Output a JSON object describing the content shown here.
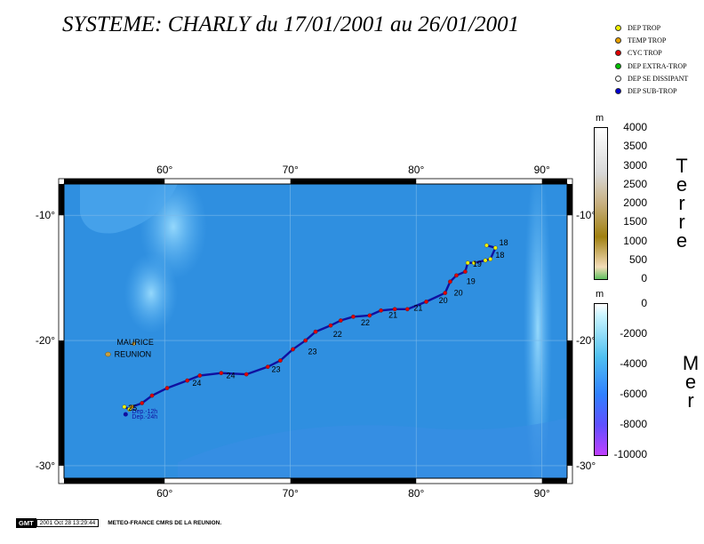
{
  "title": "SYSTEME: CHARLY du 17/01/2001 au 26/01/2001",
  "legend": [
    {
      "label": "DEP TROP",
      "color": "#f0f000"
    },
    {
      "label": "TEMP TROP",
      "color": "#e8a000"
    },
    {
      "label": "CYC TROP",
      "color": "#e00000"
    },
    {
      "label": "DEP EXTRA-TROP",
      "color": "#00c000"
    },
    {
      "label": "DEP SE DISSIPANT",
      "color": "#ffffff"
    },
    {
      "label": "DEP SUB-TROP",
      "color": "#0000d0"
    }
  ],
  "map": {
    "lon_ticks": [
      "60°",
      "70°",
      "80°",
      "90°"
    ],
    "lat_ticks": [
      "-10°",
      "-20°",
      "-30°"
    ],
    "lon_range": [
      52,
      92
    ],
    "lat_range": [
      -7.5,
      -31
    ],
    "places": [
      "MAURICE",
      "REUNION"
    ],
    "track_color": "#1010a0",
    "ocean_color": "#2f8fe0"
  },
  "track": {
    "day_labels": [
      "25",
      "24",
      "24",
      "23",
      "23",
      "22",
      "22",
      "21",
      "21",
      "20",
      "20",
      "19",
      "19",
      "18",
      "18"
    ],
    "day_label_coords": [
      {
        "lon": 57.1,
        "lat": -25.6
      },
      {
        "lon": 62.2,
        "lat": -23.6
      },
      {
        "lon": 64.9,
        "lat": -23.0
      },
      {
        "lon": 68.5,
        "lat": -22.5
      },
      {
        "lon": 71.4,
        "lat": -21.1
      },
      {
        "lon": 73.4,
        "lat": -19.7
      },
      {
        "lon": 75.6,
        "lat": -18.8
      },
      {
        "lon": 77.8,
        "lat": -18.2
      },
      {
        "lon": 79.8,
        "lat": -17.6
      },
      {
        "lon": 81.8,
        "lat": -17.0
      },
      {
        "lon": 83.0,
        "lat": -16.4
      },
      {
        "lon": 84.0,
        "lat": -15.5
      },
      {
        "lon": 84.5,
        "lat": -14.1
      },
      {
        "lon": 86.3,
        "lat": -13.4
      },
      {
        "lon": 86.6,
        "lat": -12.4
      }
    ],
    "start_labels": [
      "Dep.-12h",
      "Dep.-24h"
    ],
    "points": [
      {
        "lon": 56.8,
        "lat": -25.3,
        "type": "DEP TROP"
      },
      {
        "lon": 57.2,
        "lat": -25.5,
        "type": "DEP TROP"
      },
      {
        "lon": 57.4,
        "lat": -25.3,
        "type": "TEMP TROP"
      },
      {
        "lon": 58.2,
        "lat": -25.0,
        "type": "CYC TROP"
      },
      {
        "lon": 59.0,
        "lat": -24.4,
        "type": "CYC TROP"
      },
      {
        "lon": 60.2,
        "lat": -23.8,
        "type": "CYC TROP"
      },
      {
        "lon": 61.8,
        "lat": -23.2,
        "type": "CYC TROP"
      },
      {
        "lon": 62.8,
        "lat": -22.8,
        "type": "CYC TROP"
      },
      {
        "lon": 64.5,
        "lat": -22.6,
        "type": "CYC TROP"
      },
      {
        "lon": 66.5,
        "lat": -22.7,
        "type": "CYC TROP"
      },
      {
        "lon": 68.2,
        "lat": -22.1,
        "type": "CYC TROP"
      },
      {
        "lon": 69.2,
        "lat": -21.6,
        "type": "CYC TROP"
      },
      {
        "lon": 70.2,
        "lat": -20.7,
        "type": "CYC TROP"
      },
      {
        "lon": 71.2,
        "lat": -20.0,
        "type": "CYC TROP"
      },
      {
        "lon": 72.0,
        "lat": -19.3,
        "type": "CYC TROP"
      },
      {
        "lon": 73.2,
        "lat": -18.8,
        "type": "CYC TROP"
      },
      {
        "lon": 74.0,
        "lat": -18.4,
        "type": "CYC TROP"
      },
      {
        "lon": 75.0,
        "lat": -18.1,
        "type": "CYC TROP"
      },
      {
        "lon": 76.3,
        "lat": -18.0,
        "type": "CYC TROP"
      },
      {
        "lon": 77.2,
        "lat": -17.6,
        "type": "CYC TROP"
      },
      {
        "lon": 78.3,
        "lat": -17.5,
        "type": "CYC TROP"
      },
      {
        "lon": 79.3,
        "lat": -17.5,
        "type": "CYC TROP"
      },
      {
        "lon": 80.8,
        "lat": -16.9,
        "type": "CYC TROP"
      },
      {
        "lon": 82.3,
        "lat": -16.2,
        "type": "CYC TROP"
      },
      {
        "lon": 82.7,
        "lat": -15.3,
        "type": "CYC TROP"
      },
      {
        "lon": 83.2,
        "lat": -14.8,
        "type": "CYC TROP"
      },
      {
        "lon": 83.9,
        "lat": -14.5,
        "type": "CYC TROP"
      },
      {
        "lon": 84.1,
        "lat": -13.8,
        "type": "DEP TROP"
      },
      {
        "lon": 84.6,
        "lat": -13.8,
        "type": "DEP TROP"
      },
      {
        "lon": 85.5,
        "lat": -13.6,
        "type": "DEP TROP"
      },
      {
        "lon": 85.9,
        "lat": -13.5,
        "type": "DEP TROP"
      },
      {
        "lon": 86.3,
        "lat": -12.6,
        "type": "DEP TROP"
      },
      {
        "lon": 85.6,
        "lat": -12.4,
        "type": "DEP TROP"
      }
    ]
  },
  "scales": {
    "land": {
      "unit": "m",
      "ticks": [
        "4000",
        "3500",
        "3000",
        "2500",
        "2000",
        "1500",
        "1000",
        "500",
        "0"
      ],
      "word": [
        "T",
        "e",
        "r",
        "r",
        "e"
      ]
    },
    "sea": {
      "unit": "m",
      "ticks": [
        "0",
        "-2000",
        "-4000",
        "-6000",
        "-8000",
        "-10000"
      ],
      "word": [
        "M",
        "e",
        "r"
      ]
    }
  },
  "footer": {
    "badge": "GMT",
    "date": "2001 Oct 28 13:29:44",
    "credit": "METEO-FRANCE CMRS DE LA REUNION."
  }
}
